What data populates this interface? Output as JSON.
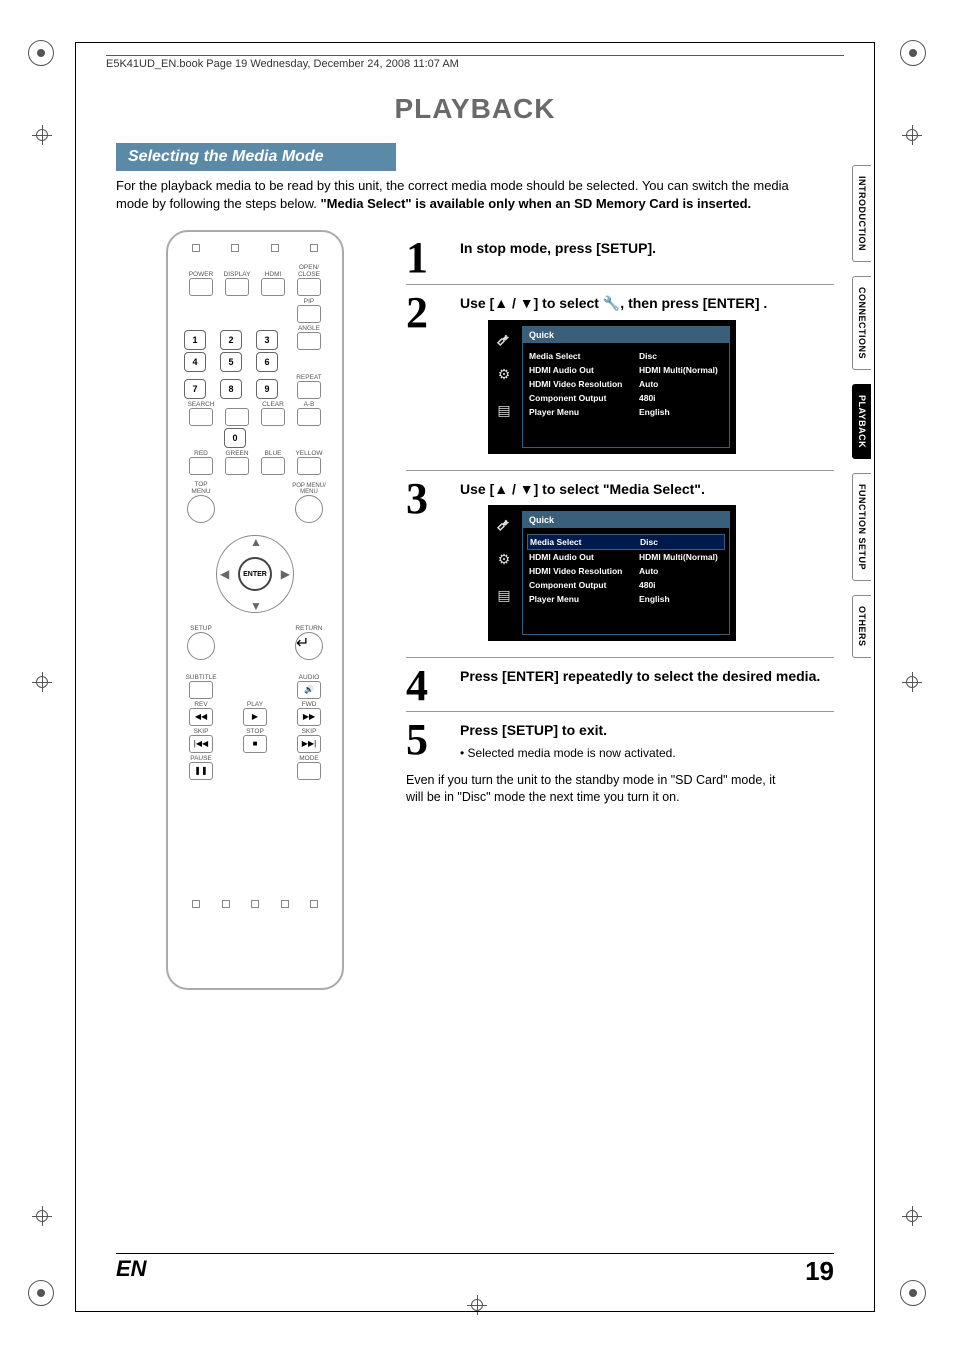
{
  "header": {
    "book_info": "E5K41UD_EN.book  Page 19  Wednesday, December 24, 2008  11:07 AM"
  },
  "title": "PLAYBACK",
  "subtitle": "Selecting the Media Mode",
  "intro_text": "For the playback media to be read by this unit, the correct media mode should be selected. You can switch the media mode by following the steps below.  ",
  "intro_bold": "\"Media Select\" is available only when an SD Memory Card is inserted.",
  "sidetabs": [
    {
      "label": "INTRODUCTION",
      "active": false
    },
    {
      "label": "CONNECTIONS",
      "active": false
    },
    {
      "label": "PLAYBACK",
      "active": true
    },
    {
      "label": "FUNCTION SETUP",
      "active": false
    },
    {
      "label": "OTHERS",
      "active": false
    }
  ],
  "remote": {
    "row1": [
      "POWER",
      "DISPLAY",
      "HDMI",
      "OPEN/\nCLOSE"
    ],
    "pip": "PIP",
    "nums": [
      "1",
      "2",
      "3",
      "4",
      "5",
      "6",
      "7",
      "8",
      "9",
      "0"
    ],
    "angle": "ANGLE",
    "repeat": "REPEAT",
    "row_search": [
      "SEARCH",
      "",
      "CLEAR",
      "A-B"
    ],
    "colors": [
      "RED",
      "GREEN",
      "BLUE",
      "YELLOW"
    ],
    "topmenu": "TOP MENU",
    "popmenu": "POP MENU/\nMENU",
    "enter": "ENTER",
    "setup": "SETUP",
    "return": "RETURN",
    "subtitle": "SUBTITLE",
    "audio": "AUDIO",
    "transport": [
      "REV",
      "PLAY",
      "FWD"
    ],
    "skiprow": [
      "SKIP",
      "STOP",
      "SKIP"
    ],
    "pause": "PAUSE",
    "mode": "MODE"
  },
  "steps": [
    {
      "num": "1",
      "text": "In stop mode, press [SETUP]."
    },
    {
      "num": "2",
      "text": "Use [▲ / ▼] to select 🔧, then press [ENTER] ."
    },
    {
      "num": "3",
      "text": "Use [▲ / ▼] to select \"Media Select\"."
    },
    {
      "num": "4",
      "text": "Press [ENTER] repeatedly to select the desired media."
    },
    {
      "num": "5",
      "text": "Press [SETUP] to exit.",
      "sub": "•  Selected media mode is now activated."
    }
  ],
  "osd": {
    "header": "Quick",
    "rows": [
      {
        "k": "Media Select",
        "v": "Disc"
      },
      {
        "k": "HDMI Audio Out",
        "v": "HDMI Multi(Normal)"
      },
      {
        "k": "HDMI Video Resolution",
        "v": "Auto"
      },
      {
        "k": "Component Output",
        "v": "480i"
      },
      {
        "k": "Player Menu",
        "v": "English"
      }
    ]
  },
  "footnote": "Even if you turn the unit to the standby mode in \"SD Card\" mode, it will be in \"Disc\" mode the next time you turn it on.",
  "footer": {
    "lang": "EN",
    "page": "19"
  },
  "colors": {
    "subtitle_bg": "#5a8aa8",
    "osd_border": "#3a5f7a",
    "osd_sel_bg": "#001a4d",
    "title_color": "#6a6a6a"
  }
}
